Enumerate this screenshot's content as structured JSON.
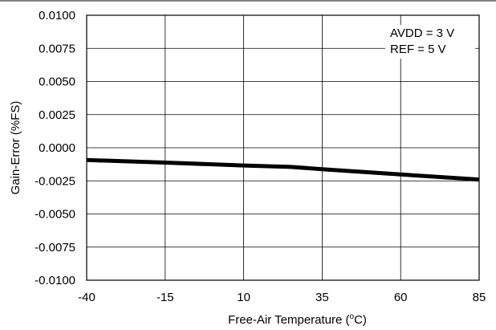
{
  "chart_data": {
    "type": "line",
    "xlabel": "Free-Air Temperature (",
    "xlabel_sup": "o",
    "xlabel_unit": "C)",
    "ylabel": "Gain-Error (%FS)",
    "xlim": [
      -40,
      85
    ],
    "ylim": [
      -0.01,
      0.01
    ],
    "x_ticks": [
      -40,
      -15,
      10,
      35,
      60,
      85
    ],
    "x_tick_labels": [
      "-40",
      "-15",
      "10",
      "35",
      "60",
      "85"
    ],
    "y_ticks": [
      0.01,
      0.0075,
      0.005,
      0.0025,
      0.0,
      -0.0025,
      -0.005,
      -0.0075,
      -0.01
    ],
    "y_tick_labels": [
      "0.0100",
      "0.0075",
      "0.0050",
      "0.0025",
      "0.0000",
      "-0.0025",
      "-0.0050",
      "-0.0075",
      "-0.0100"
    ],
    "grid": true,
    "series": [
      {
        "x": [
          -40,
          -15,
          10,
          25,
          35,
          60,
          85
        ],
        "y": [
          -0.00093,
          -0.00112,
          -0.00134,
          -0.00145,
          -0.00162,
          -0.00202,
          -0.0024
        ]
      }
    ],
    "annotations": [
      "AVDD = 3 V",
      "REF = 5 V"
    ],
    "colors": {
      "line": "#000000",
      "grid": "#000000",
      "background": "#ffffff"
    }
  }
}
